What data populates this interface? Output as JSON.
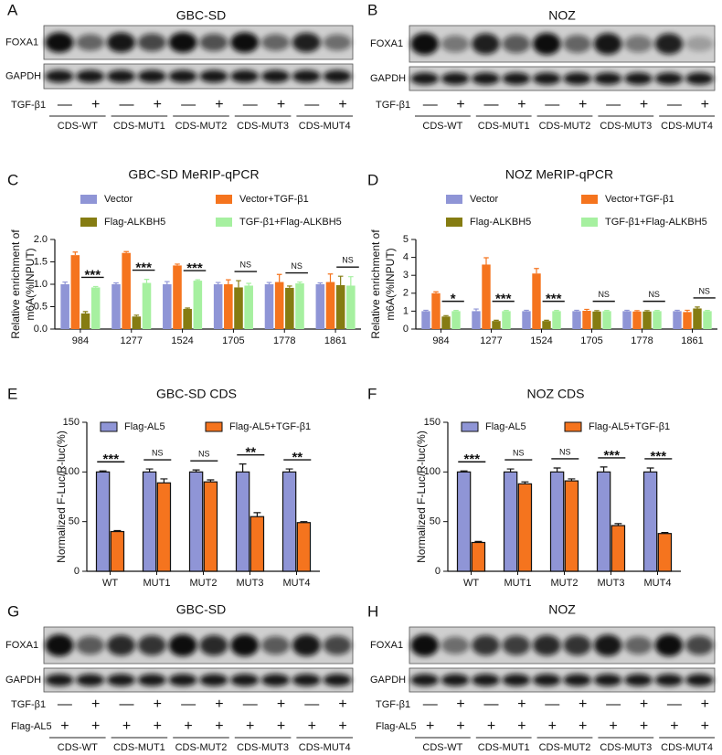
{
  "chart_data": [
    {
      "type": "bar",
      "label": "C",
      "title": "GBC-SD MeRIP-qPCR",
      "y_label": [
        "Relative enrichment of",
        "m6A(%INPUT)"
      ],
      "categories": [
        "984",
        "1277",
        "1524",
        "1705",
        "1778",
        "1861"
      ],
      "series": [
        {
          "name": "Vector",
          "color": "#8f95d6",
          "values": [
            1.0,
            1.0,
            1.0,
            1.0,
            1.0,
            1.0
          ],
          "errors": [
            0.05,
            0.03,
            0.06,
            0.04,
            0.04,
            0.03
          ]
        },
        {
          "name": "Vector+TGF-β1",
          "color": "#f5741e",
          "values": [
            1.65,
            1.7,
            1.42,
            1.0,
            1.05,
            1.05
          ],
          "errors": [
            0.07,
            0.03,
            0.03,
            0.1,
            0.17,
            0.18
          ]
        },
        {
          "name": "Flag-ALKBH5",
          "color": "#857c12",
          "values": [
            0.35,
            0.28,
            0.45,
            0.93,
            0.92,
            0.98
          ],
          "errors": [
            0.04,
            0.03,
            0.02,
            0.15,
            0.04,
            0.2
          ]
        },
        {
          "name": "TGF-β1+Flag-ALKBH5",
          "color": "#a6f0a0",
          "values": [
            0.93,
            1.03,
            1.08,
            0.97,
            1.02,
            0.97
          ],
          "errors": [
            0.02,
            0.08,
            0.02,
            0.05,
            0.03,
            0.2
          ]
        }
      ],
      "significance": [
        "***",
        "***",
        "***",
        "NS",
        "NS",
        "NS"
      ],
      "ylim": [
        0,
        2
      ],
      "yticks": [
        {
          "value": 0,
          "label": "0.0"
        },
        {
          "value": 0.5,
          "label": "0.5"
        },
        {
          "value": 1,
          "label": "1.0"
        },
        {
          "value": 1.5,
          "label": "1.5"
        },
        {
          "value": 2,
          "label": "2.0"
        }
      ],
      "legend": "top",
      "bar_outline": false
    },
    {
      "type": "bar",
      "label": "D",
      "title": "NOZ MeRIP-qPCR",
      "y_label": [
        "Relative enrichment of",
        "m6A(%INPUT)"
      ],
      "categories": [
        "984",
        "1277",
        "1524",
        "1705",
        "1778",
        "1861"
      ],
      "series": [
        {
          "name": "Vector",
          "color": "#8f95d6",
          "values": [
            1.0,
            1.0,
            1.0,
            1.0,
            1.0,
            1.0
          ],
          "errors": [
            0.05,
            0.12,
            0.05,
            0.05,
            0.05,
            0.05
          ]
        },
        {
          "name": "Vector+TGF-β1",
          "color": "#f5741e",
          "values": [
            2.0,
            3.6,
            3.1,
            1.02,
            0.98,
            0.95
          ],
          "errors": [
            0.08,
            0.38,
            0.28,
            0.08,
            0.05,
            0.1
          ]
        },
        {
          "name": "Flag-ALKBH5",
          "color": "#857c12",
          "values": [
            0.7,
            0.45,
            0.45,
            0.98,
            0.98,
            1.15
          ],
          "errors": [
            0.05,
            0.04,
            0.04,
            0.05,
            0.05,
            0.08
          ]
        },
        {
          "name": "TGF-β1+Flag-ALKBH5",
          "color": "#a6f0a0",
          "values": [
            1.0,
            1.0,
            1.0,
            1.0,
            1.0,
            1.0
          ],
          "errors": [
            0.04,
            0.04,
            0.04,
            0.04,
            0.04,
            0.04
          ]
        }
      ],
      "significance": [
        "*",
        "***",
        "***",
        "NS",
        "NS",
        "NS"
      ],
      "ylim": [
        0,
        5
      ],
      "yticks": [
        0,
        1,
        2,
        3,
        4,
        5
      ],
      "legend": "top",
      "bar_outline": false
    },
    {
      "type": "bar",
      "label": "E",
      "title": "GBC-SD CDS",
      "y_label": [
        "Normalized F-Luc/R-luc(%)"
      ],
      "categories": [
        "WT",
        "MUT1",
        "MUT2",
        "MUT3",
        "MUT4"
      ],
      "series": [
        {
          "name": "Flag-AL5",
          "color": "#8f95d6",
          "values": [
            100,
            100,
            100,
            100,
            100
          ],
          "errors": [
            1,
            3,
            2,
            8,
            3
          ]
        },
        {
          "name": "Flag-AL5+TGF-β1",
          "color": "#f5741e",
          "values": [
            40,
            89,
            90,
            55,
            49
          ],
          "errors": [
            1,
            4,
            2,
            4,
            1
          ]
        }
      ],
      "significance": [
        "***",
        "NS",
        "NS",
        "**",
        "**"
      ],
      "ylim": [
        0,
        150
      ],
      "yticks": [
        0,
        50,
        100,
        150
      ],
      "legend": "top",
      "bar_outline": true
    },
    {
      "type": "bar",
      "label": "F",
      "title": "NOZ CDS",
      "y_label": [
        "Normalized F-Luc/R-luc(%)"
      ],
      "categories": [
        "WT",
        "MUT1",
        "MUT2",
        "MUT3",
        "MUT4"
      ],
      "series": [
        {
          "name": "Flag-AL5",
          "color": "#8f95d6",
          "values": [
            100,
            100,
            100,
            100,
            100
          ],
          "errors": [
            1,
            3,
            4,
            5,
            4
          ]
        },
        {
          "name": "Flag-AL5+TGF-β1",
          "color": "#f5741e",
          "values": [
            29,
            88,
            91,
            46,
            38
          ],
          "errors": [
            1,
            2,
            2,
            2,
            1
          ]
        }
      ],
      "significance": [
        "***",
        "NS",
        "NS",
        "***",
        "***"
      ],
      "ylim": [
        0,
        150
      ],
      "yticks": [
        0,
        50,
        100,
        150
      ],
      "legend": "top",
      "bar_outline": true
    }
  ],
  "blots": [
    {
      "label": "A",
      "title": "GBC-SD",
      "rows": [
        "FOXA1",
        "GAPDH"
      ],
      "treatments": [
        {
          "name": "TGF-β1",
          "signs": [
            "—",
            "+",
            "—",
            "+",
            "—",
            "+",
            "—",
            "+",
            "—",
            "+"
          ]
        }
      ],
      "groups": [
        "CDS-WT",
        "CDS-MUT1",
        "CDS-MUT2",
        "CDS-MUT3",
        "CDS-MUT4"
      ]
    },
    {
      "label": "B",
      "title": "NOZ",
      "rows": [
        "FOXA1",
        "GAPDH"
      ],
      "treatments": [
        {
          "name": "TGF-β1",
          "signs": [
            "—",
            "+",
            "—",
            "+",
            "—",
            "+",
            "—",
            "+",
            "—",
            "+"
          ]
        }
      ],
      "groups": [
        "CDS-WT",
        "CDS-MUT1",
        "CDS-MUT2",
        "CDS-MUT3",
        "CDS-MUT4"
      ]
    },
    {
      "label": "G",
      "title": "GBC-SD",
      "rows": [
        "FOXA1",
        "GAPDH"
      ],
      "treatments": [
        {
          "name": "TGF-β1",
          "signs": [
            "—",
            "+",
            "—",
            "+",
            "—",
            "+",
            "—",
            "+",
            "—",
            "+"
          ]
        },
        {
          "name": "Flag-AL5",
          "signs": [
            "+",
            "+",
            "+",
            "+",
            "+",
            "+",
            "+",
            "+",
            "+",
            "+"
          ]
        }
      ],
      "groups": [
        "CDS-WT",
        "CDS-MUT1",
        "CDS-MUT2",
        "CDS-MUT3",
        "CDS-MUT4"
      ]
    },
    {
      "label": "H",
      "title": "NOZ",
      "rows": [
        "FOXA1",
        "GAPDH"
      ],
      "treatments": [
        {
          "name": "TGF-β1",
          "signs": [
            "—",
            "+",
            "—",
            "+",
            "—",
            "+",
            "—",
            "+",
            "—",
            "+"
          ]
        },
        {
          "name": "Flag-AL5",
          "signs": [
            "+",
            "+",
            "+",
            "+",
            "+",
            "+",
            "+",
            "+",
            "+",
            "+"
          ]
        }
      ],
      "groups": [
        "CDS-WT",
        "CDS-MUT1",
        "CDS-MUT2",
        "CDS-MUT3",
        "CDS-MUT4"
      ]
    }
  ]
}
